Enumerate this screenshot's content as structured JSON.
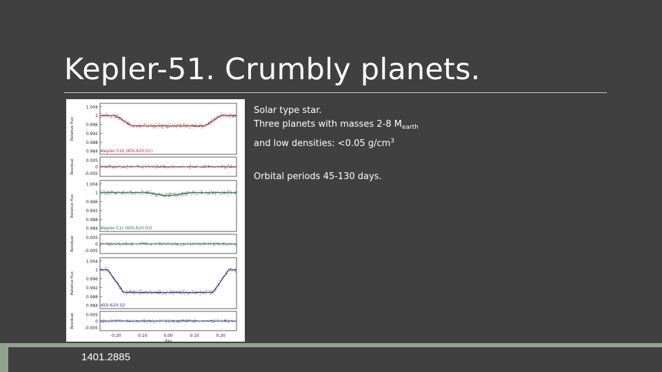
{
  "slide": {
    "title": "Kepler-51. Crumbly planets.",
    "reference": "1401.2885",
    "colors": {
      "background": "#404040",
      "title": "#ffffff",
      "footer_band": "#93a291"
    }
  },
  "body": {
    "line1": "Solar type star.",
    "line2_prefix": "Three planets with masses 2-8 M",
    "line2_sub": "earth",
    "line3_prefix": "and low densities: <0.05 g/cm",
    "line3_sup": "3",
    "line4": "Orbital periods 45-130 days."
  },
  "figure": {
    "x_axis_label": "day",
    "x_tick_labels": [
      "-0.20",
      "-0.10",
      "0.00",
      "0.10",
      "0.20"
    ],
    "flux_ylabel": "Relative flux",
    "resid_ylabel": "Residual",
    "flux_tick_labels": [
      "1.004",
      "1",
      "0.996",
      "0.992",
      "0.988",
      "0.984"
    ],
    "resid_tick_labels": [
      "0.005",
      "0",
      "-0.005"
    ],
    "panels": [
      {
        "label": "Kepler-51b (KOI-620.01)",
        "color": "#b02a2a",
        "depth": 0.0047,
        "half_duration": 0.17
      },
      {
        "label": "Kepler-51c (KOI-620.03)",
        "color": "#2a7a3a",
        "depth": 0.0012,
        "half_duration": 0.05
      },
      {
        "label": "KOI-620.02",
        "color": "#2a3a9a",
        "depth": 0.0102,
        "half_duration": 0.2
      }
    ]
  }
}
